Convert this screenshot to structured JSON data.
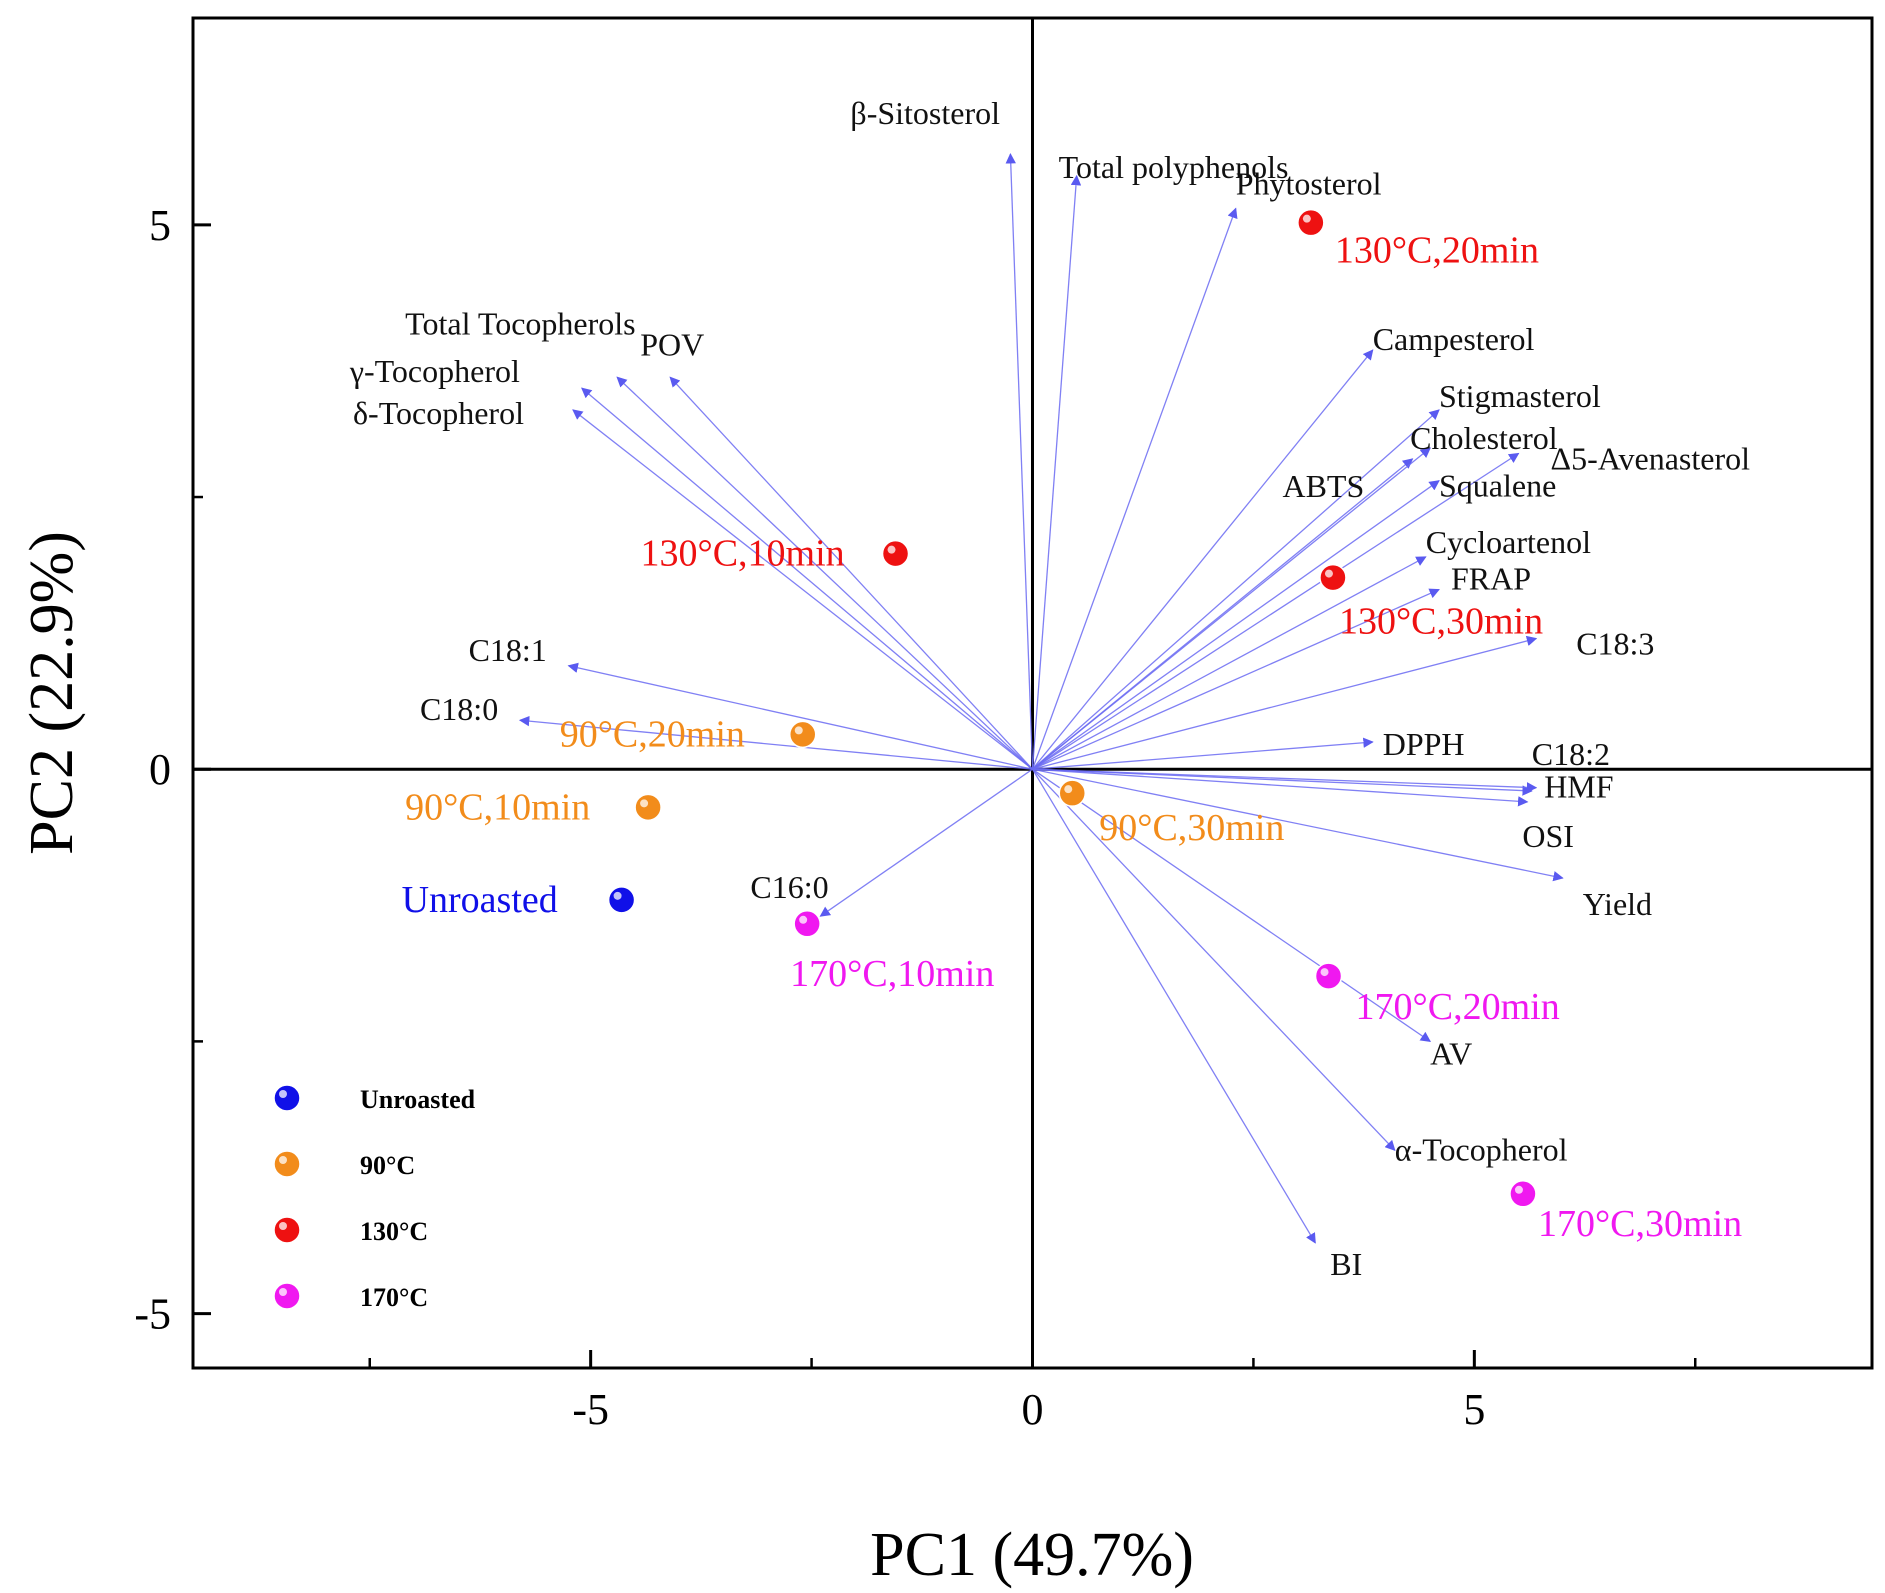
{
  "chart_data": {
    "type": "scatter",
    "subtype": "pca-biplot",
    "title": "",
    "xlabel": "PC1 (49.7%)",
    "ylabel": "PC2 (22.9%)",
    "xlim": [
      -9.5,
      9.5
    ],
    "ylim": [
      -5.5,
      6.9
    ],
    "x_ticks": [
      -5,
      0,
      5
    ],
    "y_ticks": [
      -5,
      0,
      5
    ],
    "grid": false,
    "legend_position": "bottom-left",
    "loadings_color": "#6a6af2",
    "loadings": [
      {
        "label": "β-Sitosterol",
        "x": -0.25,
        "y": 5.65
      },
      {
        "label": "Total polyphenols",
        "x": 0.5,
        "y": 5.45
      },
      {
        "label": "Phytosterol",
        "x": 2.3,
        "y": 5.15
      },
      {
        "label": "Total Tocopherols",
        "x": -4.7,
        "y": 3.6
      },
      {
        "label": "POV",
        "x": -4.1,
        "y": 3.6
      },
      {
        "label": "γ-Tocopherol",
        "x": -5.1,
        "y": 3.5
      },
      {
        "label": "δ-Tocopherol",
        "x": -5.2,
        "y": 3.3
      },
      {
        "label": "Campesterol",
        "x": 3.85,
        "y": 3.85
      },
      {
        "label": "Stigmasterol",
        "x": 4.6,
        "y": 3.3
      },
      {
        "label": "ABTS",
        "x": 4.3,
        "y": 2.85
      },
      {
        "label": "Cholesterol",
        "x": 4.5,
        "y": 2.95
      },
      {
        "label": "Δ5-Avenasterol",
        "x": 5.5,
        "y": 2.9
      },
      {
        "label": "Squalene",
        "x": 4.6,
        "y": 2.65
      },
      {
        "label": "Cycloartenol",
        "x": 4.45,
        "y": 1.95
      },
      {
        "label": "FRAP",
        "x": 4.6,
        "y": 1.65
      },
      {
        "label": "C18:3",
        "x": 5.7,
        "y": 1.2
      },
      {
        "label": "C18:1",
        "x": -5.25,
        "y": 0.95
      },
      {
        "label": "C18:0",
        "x": -5.8,
        "y": 0.45
      },
      {
        "label": "DPPH",
        "x": 3.85,
        "y": 0.25
      },
      {
        "label": "C18:2",
        "x": 5.65,
        "y": -0.2
      },
      {
        "label": "HMF",
        "x": 5.7,
        "y": -0.17
      },
      {
        "label": "OSI",
        "x": 5.6,
        "y": -0.3
      },
      {
        "label": "Yield",
        "x": 6.0,
        "y": -1.0
      },
      {
        "label": "C16:0",
        "x": -2.4,
        "y": -1.35
      },
      {
        "label": "AV",
        "x": 4.5,
        "y": -2.5
      },
      {
        "label": "α-Tocopherol",
        "x": 4.1,
        "y": -3.5
      },
      {
        "label": "BI",
        "x": 3.2,
        "y": -4.35
      }
    ],
    "groups": [
      {
        "name": "Unroasted",
        "color": "#1010e8"
      },
      {
        "name": "90°C",
        "color": "#f28c1b"
      },
      {
        "name": "130°C",
        "color": "#ee1111"
      },
      {
        "name": "170°C",
        "color": "#f018f0"
      }
    ],
    "scores": [
      {
        "label": "Unroasted",
        "group": 0,
        "x": -4.65,
        "y": -1.2
      },
      {
        "label": "90°C,10min",
        "group": 1,
        "x": -4.35,
        "y": -0.35
      },
      {
        "label": "90°C,20min",
        "group": 1,
        "x": -2.6,
        "y": 0.32
      },
      {
        "label": "90°C,30min",
        "group": 1,
        "x": 0.45,
        "y": -0.22
      },
      {
        "label": "130°C,10min",
        "group": 2,
        "x": -1.55,
        "y": 1.98
      },
      {
        "label": "130°C,20min",
        "group": 2,
        "x": 3.15,
        "y": 5.02
      },
      {
        "label": "130°C,30min",
        "group": 2,
        "x": 3.4,
        "y": 1.76
      },
      {
        "label": "170°C,10min",
        "group": 3,
        "x": -2.55,
        "y": -1.42
      },
      {
        "label": "170°C,20min",
        "group": 3,
        "x": 3.35,
        "y": -1.9
      },
      {
        "label": "170°C,30min",
        "group": 3,
        "x": 5.55,
        "y": -3.9
      }
    ]
  }
}
